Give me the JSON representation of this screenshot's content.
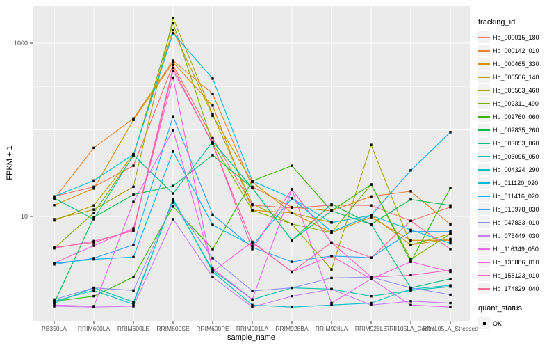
{
  "chart_data": {
    "type": "line",
    "title": "",
    "xlabel": "sample_name",
    "ylabel": "FPKM + 1",
    "y_scale": "log10",
    "y_ticks": [
      10,
      1000
    ],
    "y_tick_labels": [
      "10",
      "1000"
    ],
    "y_gridlines_major": [
      1,
      10,
      100,
      1000
    ],
    "y_gridlines_minor": [
      3.162,
      31.62,
      316.2
    ],
    "ylim": [
      0.63,
      2740
    ],
    "grid": true,
    "panel_bg": "#EBEBEB",
    "grid_color": "#FFFFFF",
    "tick_label_color": "#4D4D4D",
    "point_color": "#000000",
    "point_shape": "square",
    "legend_position": "right",
    "categories": [
      "PB350LA",
      "RRIM600LA",
      "RRIM600LE",
      "RRIM600SE",
      "RRIM600PE",
      "RRIM901LA",
      "RRIM928BA",
      "RRIM928LA",
      "RRIM928LE",
      "RRII105LA_Control",
      "RRII105LA_Stressed"
    ],
    "series": [
      {
        "name": "Hb_000015_180",
        "color": "#F8766D",
        "values": [
          17,
          22,
          38.5,
          560,
          80,
          13.5,
          12.5,
          13.5,
          13.4,
          8.9,
          12.8
        ]
      },
      {
        "name": "Hb_000142_010",
        "color": "#EA8331",
        "values": [
          16,
          62,
          135,
          630,
          260,
          22,
          12.8,
          11.6,
          17,
          19.5,
          8.1
        ]
      },
      {
        "name": "Hb_000465_330",
        "color": "#D89000",
        "values": [
          13.5,
          21,
          130,
          600,
          190,
          11.8,
          11,
          6.5,
          9.8,
          5.3,
          5.3
        ]
      },
      {
        "name": "Hb_000506_140",
        "color": "#C09B00",
        "values": [
          9,
          13.4,
          52,
          1420,
          145,
          25,
          11,
          8.5,
          10.3,
          4.7,
          5.5
        ]
      },
      {
        "name": "Hb_000563_460",
        "color": "#A3A500",
        "values": [
          9.3,
          12,
          22,
          1950,
          150,
          14,
          8.2,
          2.45,
          67,
          4.7,
          6.3
        ]
      },
      {
        "name": "Hb_002311_490",
        "color": "#7CAE00",
        "values": [
          4.3,
          11,
          50,
          1710,
          70,
          11.8,
          8.2,
          6.5,
          23.4,
          3.2,
          6.3
        ]
      },
      {
        "name": "Hb_002760_060",
        "color": "#39B600",
        "values": [
          1.05,
          1.2,
          2.0,
          13,
          4.2,
          25.7,
          38.5,
          11.6,
          23.4,
          3.0,
          21.3
        ]
      },
      {
        "name": "Hb_002835_260",
        "color": "#00BB4E",
        "values": [
          1.0,
          9.8,
          17.8,
          22.5,
          51,
          21.3,
          5.3,
          13.9,
          8.1,
          15.7,
          13.4
        ]
      },
      {
        "name": "Hb_003053_060",
        "color": "#00BF7D",
        "values": [
          16.2,
          9.3,
          51,
          18.4,
          73,
          21.3,
          5.3,
          11.6,
          8.1,
          1.5,
          1.9
        ]
      },
      {
        "name": "Hb_003095_050",
        "color": "#00C1A3",
        "values": [
          1.0,
          1.5,
          1.03,
          15.3,
          2.4,
          1.1,
          1.5,
          1.45,
          1.2,
          1.4,
          1.55
        ]
      },
      {
        "name": "Hb_004324_290",
        "color": "#00BFC4",
        "values": [
          1.05,
          1.4,
          0.97,
          16,
          2.3,
          0.95,
          0.9,
          0.95,
          1.0,
          1.45,
          1.6
        ]
      },
      {
        "name": "Hb_011120_020",
        "color": "#00BAE0",
        "values": [
          17,
          26,
          52,
          1300,
          390,
          25.7,
          16.2,
          8.5,
          10.3,
          7.0,
          4.9
        ]
      },
      {
        "name": "Hb_011416_020",
        "color": "#00B0F6",
        "values": [
          2.9,
          3.2,
          3.4,
          56,
          8.0,
          4.6,
          16.2,
          6.7,
          10.3,
          34,
          94
        ]
      },
      {
        "name": "Hb_015978_030",
        "color": "#35A2FF",
        "values": [
          2.8,
          3.3,
          4.7,
          143,
          10.5,
          4.4,
          3.0,
          3.5,
          3.35,
          6.7,
          6.7
        ]
      },
      {
        "name": "Hb_047833_010",
        "color": "#9590FF",
        "values": [
          1.1,
          1.5,
          1.4,
          14.5,
          3.3,
          1.38,
          1.5,
          1.95,
          2.0,
          1.5,
          1.25
        ]
      },
      {
        "name": "Hb_075449_030",
        "color": "#C77CFF",
        "values": [
          0.92,
          0.9,
          0.92,
          9.3,
          2.0,
          0.9,
          1.2,
          1.45,
          0.95,
          1.05,
          1.0
        ]
      },
      {
        "name": "Hb_116349_050",
        "color": "#E76BF3",
        "values": [
          0.95,
          0.92,
          14.7,
          99,
          2.5,
          1.1,
          20.6,
          1.0,
          1.9,
          0.95,
          0.9
        ]
      },
      {
        "name": "Hb_136886_010",
        "color": "#FA62DB",
        "values": [
          2.9,
          4.6,
          7.3,
          400,
          2.3,
          5.1,
          2.3,
          3.5,
          1.9,
          3.0,
          2.3
        ]
      },
      {
        "name": "Hb_158123_010",
        "color": "#FF62BC",
        "values": [
          4.3,
          5.2,
          6.8,
          480,
          70,
          4.2,
          20.6,
          5.0,
          2.0,
          2.1,
          2.4
        ]
      },
      {
        "name": "Hb_174829_040",
        "color": "#FF6A98",
        "values": [
          4.4,
          5.0,
          7.0,
          520,
          68,
          5.0,
          2.3,
          5.0,
          3.35,
          8.9,
          4.2
        ]
      }
    ],
    "legend_title": "tracking_id",
    "legend2_title": "quant_status",
    "legend2_items": [
      "OK"
    ]
  }
}
